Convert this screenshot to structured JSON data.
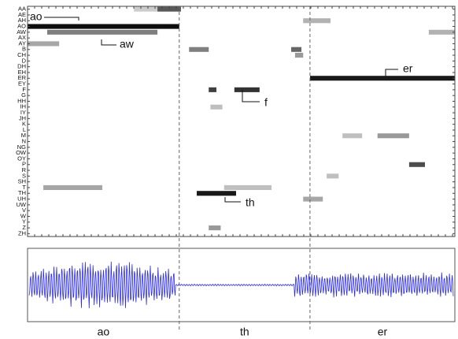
{
  "chart_data": {
    "type": "posteriorgram",
    "phonemes": [
      "AA",
      "AE",
      "AH",
      "AO",
      "AW",
      "AX",
      "AY",
      "B",
      "CH",
      "D",
      "DH",
      "EH",
      "ER",
      "EY",
      "F",
      "G",
      "HH",
      "IH",
      "IY",
      "JH",
      "K",
      "L",
      "M",
      "N",
      "NG",
      "OW",
      "OY",
      "P",
      "R",
      "S",
      "SH",
      "T",
      "TH",
      "UH",
      "UW",
      "V",
      "W",
      "Y",
      "Z",
      "ZH"
    ],
    "xlim": [
      0,
      100
    ],
    "segments": [
      {
        "label": "ao",
        "start": 0,
        "end": 35.5
      },
      {
        "label": "th",
        "start": 35.5,
        "end": 66.1
      },
      {
        "label": "er",
        "start": 66.1,
        "end": 100
      }
    ],
    "annotations": [
      "ao",
      "aw",
      "f",
      "er",
      "th"
    ],
    "streaks": [
      {
        "row": 0,
        "x0": 24.9,
        "x1": 30.4,
        "intensity": 0.2
      },
      {
        "row": 0,
        "x0": 30.4,
        "x1": 35.9,
        "intensity": 0.65
      },
      {
        "row": 2,
        "x0": 64.5,
        "x1": 70.9,
        "intensity": 0.3
      },
      {
        "row": 3,
        "x0": 0,
        "x1": 35.5,
        "intensity": 0.95
      },
      {
        "row": 4,
        "x0": 4.6,
        "x1": 30.4,
        "intensity": 0.5
      },
      {
        "row": 4,
        "x0": 93.9,
        "x1": 100,
        "intensity": 0.3
      },
      {
        "row": 6,
        "x0": 0,
        "x1": 7.4,
        "intensity": 0.35
      },
      {
        "row": 7,
        "x0": 37.8,
        "x1": 42.4,
        "intensity": 0.5
      },
      {
        "row": 7,
        "x0": 61.7,
        "x1": 64.1,
        "intensity": 0.6
      },
      {
        "row": 8,
        "x0": 62.6,
        "x1": 64.5,
        "intensity": 0.4
      },
      {
        "row": 12,
        "x0": 66.1,
        "x1": 100,
        "intensity": 0.9
      },
      {
        "row": 14,
        "x0": 42.4,
        "x1": 44.2,
        "intensity": 0.75
      },
      {
        "row": 14,
        "x0": 48.4,
        "x1": 54.3,
        "intensity": 0.8
      },
      {
        "row": 17,
        "x0": 42.8,
        "x1": 45.6,
        "intensity": 0.25
      },
      {
        "row": 22,
        "x0": 73.7,
        "x1": 78.3,
        "intensity": 0.25
      },
      {
        "row": 22,
        "x0": 81.9,
        "x1": 89.3,
        "intensity": 0.4
      },
      {
        "row": 27,
        "x0": 89.3,
        "x1": 93,
        "intensity": 0.7
      },
      {
        "row": 29,
        "x0": 70,
        "x1": 72.8,
        "intensity": 0.25
      },
      {
        "row": 31,
        "x0": 3.7,
        "x1": 17.5,
        "intensity": 0.35
      },
      {
        "row": 31,
        "x0": 46.0,
        "x1": 57.1,
        "intensity": 0.25
      },
      {
        "row": 32,
        "x0": 39.6,
        "x1": 48.8,
        "intensity": 0.9
      },
      {
        "row": 33,
        "x0": 64.5,
        "x1": 69.1,
        "intensity": 0.35
      },
      {
        "row": 38,
        "x0": 42.4,
        "x1": 45.2,
        "intensity": 0.4
      }
    ]
  }
}
